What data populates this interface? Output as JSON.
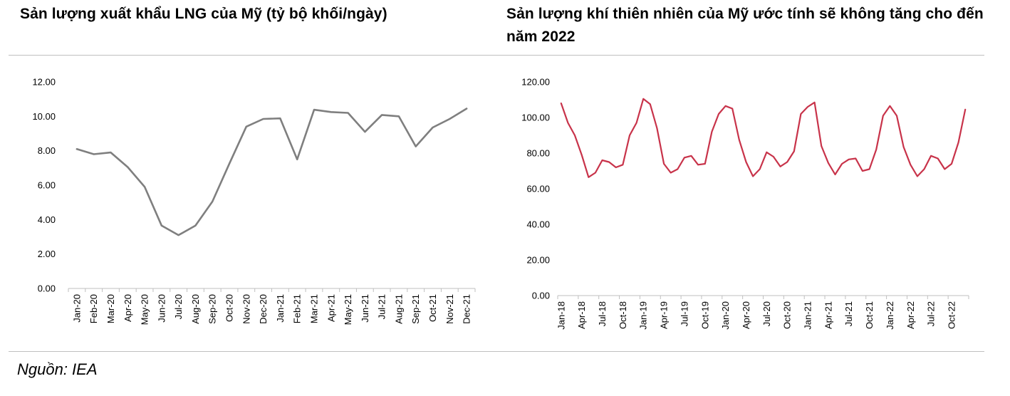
{
  "left_title": "Sản lượng xuất khẩu LNG của Mỹ (tỷ bộ khối/ngày)",
  "right_title": "Sản lượng khí thiên nhiên của Mỹ ước tính sẽ không tăng cho đến năm 2022",
  "source": "Nguồn: IEA",
  "colors": {
    "left_line": "#7f7f7f",
    "right_line": "#c8334a",
    "axis": "#bfbfbf"
  },
  "chart_data": [
    {
      "type": "line",
      "title": "Sản lượng xuất khẩu LNG của Mỹ (tỷ bộ khối/ngày)",
      "xlabel": "",
      "ylabel": "",
      "ylim": [
        0,
        12
      ],
      "yticks": [
        "0.00",
        "2.00",
        "4.00",
        "6.00",
        "8.00",
        "10.00",
        "12.00"
      ],
      "grid": false,
      "categories": [
        "Jan-20",
        "Feb-20",
        "Mar-20",
        "Apr-20",
        "May-20",
        "Jun-20",
        "Jul-20",
        "Aug-20",
        "Sep-20",
        "Oct-20",
        "Nov-20",
        "Dec-20",
        "Jan-21",
        "Feb-21",
        "Mar-21",
        "Apr-21",
        "May-21",
        "Jun-21",
        "Jul-21",
        "Aug-21",
        "Sep-21",
        "Oct-21",
        "Nov-21",
        "Dec-21"
      ],
      "values": [
        8.1,
        7.8,
        7.9,
        7.05,
        5.9,
        3.65,
        3.1,
        3.65,
        5.05,
        7.25,
        9.4,
        9.85,
        9.88,
        7.5,
        10.38,
        10.25,
        10.2,
        9.1,
        10.08,
        10.0,
        8.25,
        9.35,
        9.85,
        10.45
      ]
    },
    {
      "type": "line",
      "title": "Sản lượng khí thiên nhiên của Mỹ ước tính sẽ không tăng cho đến năm 2022",
      "xlabel": "",
      "ylabel": "",
      "ylim": [
        0,
        120
      ],
      "yticks": [
        "0.00",
        "20.00",
        "40.00",
        "60.00",
        "80.00",
        "100.00",
        "120.00"
      ],
      "grid": false,
      "tick_labels": [
        "Jan-18",
        "Apr-18",
        "Jul-18",
        "Oct-18",
        "Jan-19",
        "Apr-19",
        "Jul-19",
        "Oct-19",
        "Jan-20",
        "Apr-20",
        "Jul-20",
        "Oct-20",
        "Jan-21",
        "Apr-21",
        "Jul-21",
        "Oct-21",
        "Jan-22",
        "Apr-22",
        "Jul-22",
        "Oct-22"
      ],
      "x_start": "Jan-18",
      "x_end": "Dec-22",
      "values": [
        108,
        97,
        90,
        79,
        66.5,
        69,
        76,
        75,
        72,
        73.5,
        90,
        97,
        110.5,
        107.5,
        94,
        74,
        69,
        71,
        77.5,
        78.5,
        73.5,
        74,
        92,
        102,
        106.5,
        105,
        87.5,
        75,
        67,
        71,
        80.5,
        78,
        72.5,
        75,
        81,
        102,
        106,
        108.5,
        84,
        74.5,
        68,
        74,
        76.5,
        77,
        70,
        71,
        82,
        101,
        106.5,
        101,
        83.5,
        73.5,
        67,
        71,
        78.5,
        77,
        71,
        74,
        86,
        104.5
      ]
    }
  ]
}
